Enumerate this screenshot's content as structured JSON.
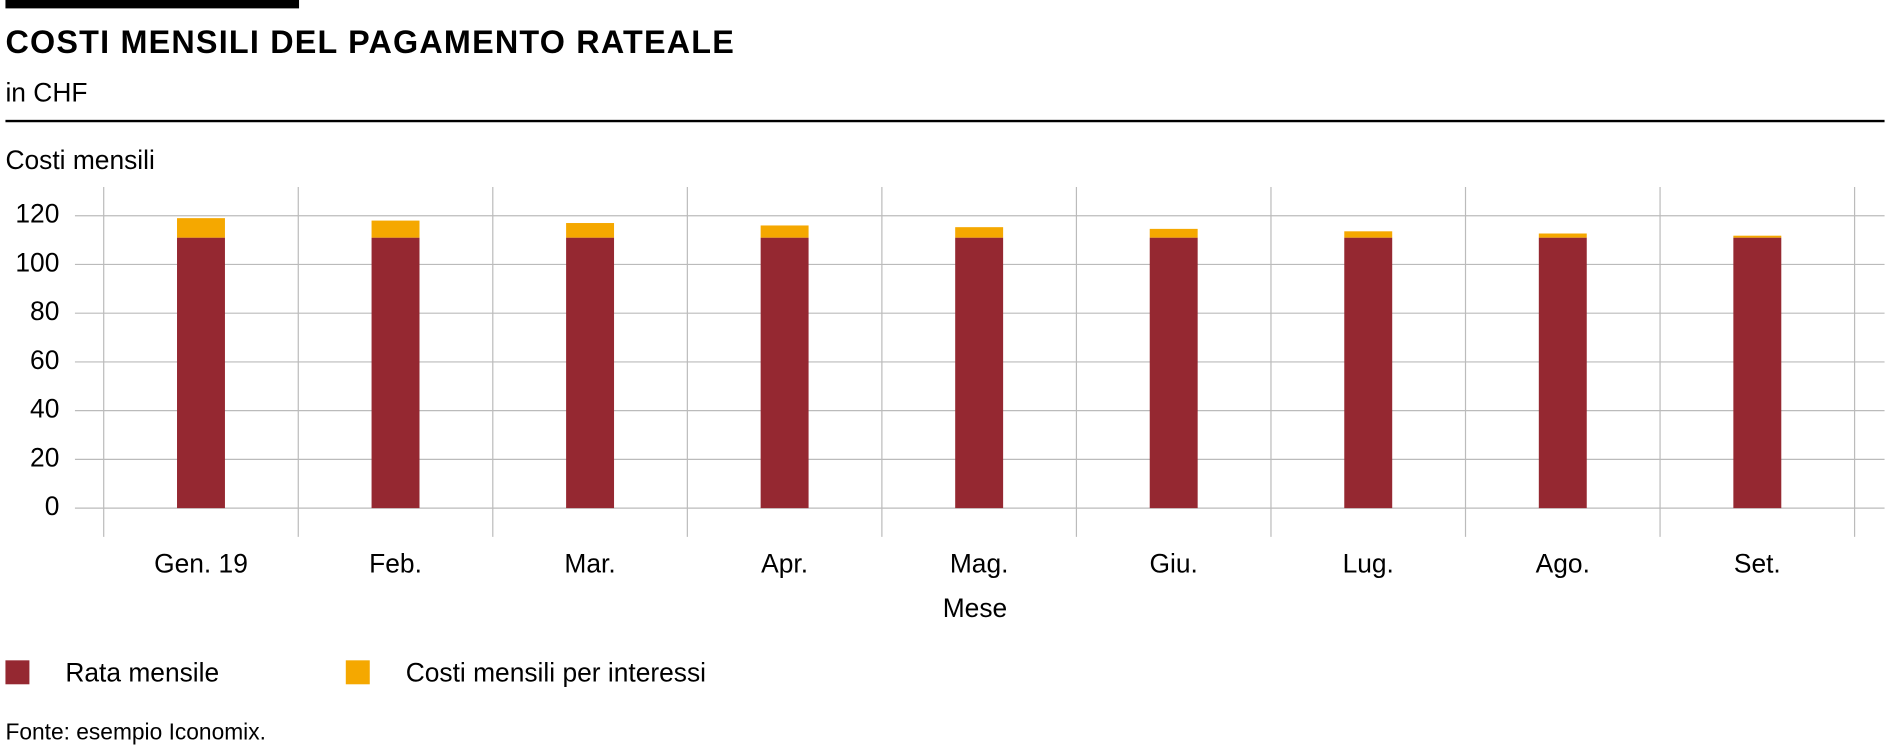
{
  "chart_data": {
    "type": "stacked_bar",
    "title": "COSTI MENSILI DEL PAGAMENTO RATEALE",
    "subtitle": "in CHF",
    "y_label": "Costi mensili",
    "x_label": "Mese",
    "source": "Fonte: esempio Iconomix.",
    "categories": [
      "Gen. 19",
      "Feb.",
      "Mar.",
      "Apr.",
      "Mag.",
      "Giu.",
      "Lug.",
      "Ago.",
      "Set."
    ],
    "series": [
      {
        "name": "Rata mensile",
        "color": "#952831",
        "values": [
          111,
          111,
          111,
          111,
          111,
          111,
          111,
          111,
          111
        ]
      },
      {
        "name": "Costi mensili per interessi",
        "color": "#f5a800",
        "values": [
          8,
          7,
          6,
          5,
          4.3,
          3.6,
          2.6,
          1.7,
          0.8
        ]
      }
    ],
    "ylim": [
      0,
      120
    ],
    "yticks": [
      0,
      20,
      40,
      60,
      80,
      100,
      120
    ],
    "grid": true
  }
}
